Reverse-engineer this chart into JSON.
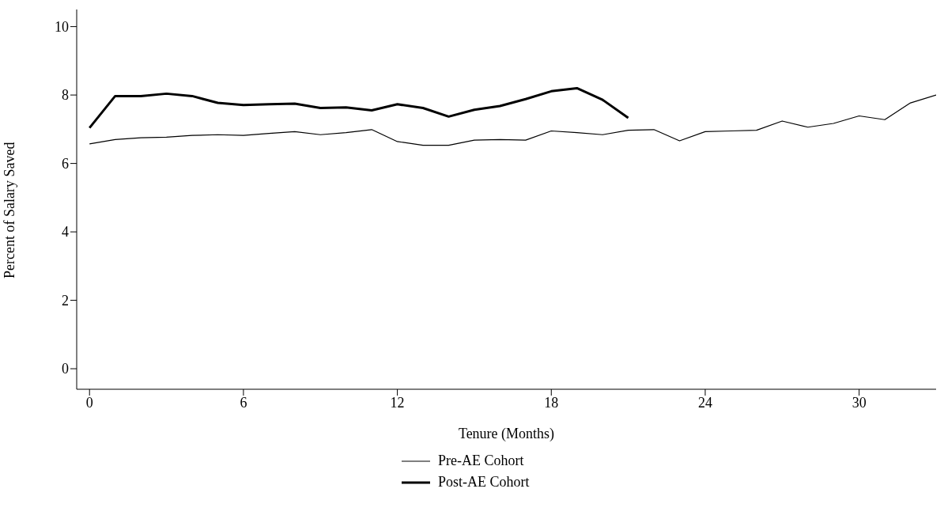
{
  "chart_data": {
    "type": "line",
    "xlabel": "Tenure (Months)",
    "ylabel": "Percent of Salary Saved",
    "x": [
      0,
      1,
      2,
      3,
      4,
      5,
      6,
      7,
      8,
      9,
      10,
      11,
      12,
      13,
      14,
      15,
      16,
      17,
      18,
      19,
      20,
      21,
      22,
      23,
      24,
      25,
      26,
      27,
      28,
      29,
      30,
      31,
      32,
      33
    ],
    "series": [
      {
        "name": "Pre-AE Cohort",
        "color": "#000000",
        "values": [
          6.57,
          6.7,
          6.75,
          6.77,
          6.82,
          6.84,
          6.82,
          6.88,
          6.93,
          6.84,
          6.9,
          6.99,
          6.64,
          6.53,
          6.53,
          6.68,
          6.7,
          6.68,
          6.95,
          6.9,
          6.84,
          6.97,
          6.99,
          6.66,
          6.93,
          6.95,
          6.97,
          7.24,
          7.06,
          7.17,
          7.39,
          7.28,
          7.77,
          8.0
        ]
      },
      {
        "name": "Post-AE Cohort",
        "color": "#000000",
        "values": [
          7.04,
          7.97,
          7.97,
          8.04,
          7.97,
          7.77,
          7.71,
          7.73,
          7.75,
          7.62,
          7.64,
          7.55,
          7.73,
          7.62,
          7.37,
          7.57,
          7.68,
          7.88,
          8.11,
          8.2,
          7.86,
          7.33,
          null,
          null,
          null,
          null,
          null,
          null,
          null,
          null,
          null,
          null,
          null,
          null
        ]
      }
    ],
    "xlim": [
      -0.5,
      33
    ],
    "xticks": [
      0,
      6,
      12,
      18,
      24,
      30
    ],
    "ylim": [
      -0.6,
      10.5
    ],
    "yticks": [
      0,
      2,
      4,
      6,
      8,
      10
    ],
    "grid": false,
    "legend": "bottom",
    "marker": "none",
    "line_style": "solid"
  }
}
